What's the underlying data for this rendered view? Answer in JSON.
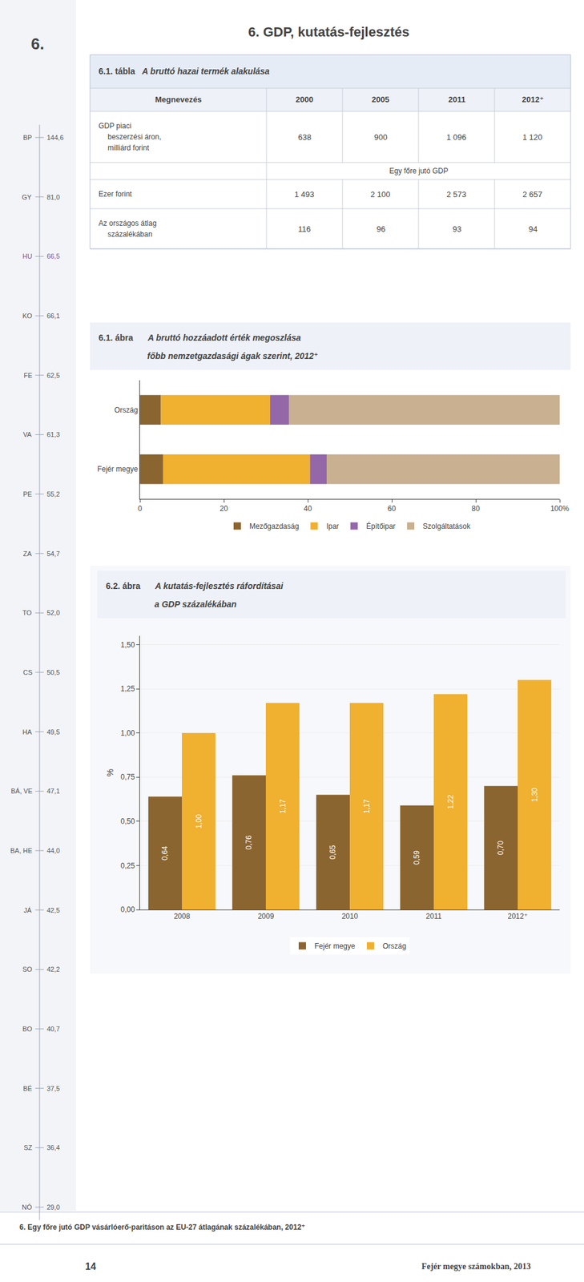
{
  "title": "6. GDP, kutatás-fejlesztés",
  "annotations": [
    "6.",
    "6. Egy főre jutó GDP vásárlóerő-paritáson az EU-27 átlagának százalékában, 2012⁺",
    "14",
    "Fejér megye számokban, 2013"
  ],
  "chart_data": [
    {
      "type": "table",
      "categories": [
        "BP",
        "GY",
        "HU",
        "KO",
        "FE",
        "VA",
        "PE",
        "ZA",
        "TO",
        "CS",
        "HA",
        "BÁ, VE",
        "BA, HE",
        "JÁ",
        "SO",
        "BO",
        "BÉ",
        "SZ",
        "NÓ"
      ],
      "values": [
        144.6,
        81.0,
        66.5,
        66.1,
        62.5,
        61.3,
        55.2,
        54.7,
        52.0,
        50.5,
        49.5,
        47.1,
        44.0,
        42.5,
        42.2,
        40.7,
        37.5,
        36.4,
        29.0
      ],
      "value_labels": [
        "144,6",
        "81,0",
        "66,5",
        "66,1",
        "62,5",
        "61,3",
        "55,2",
        "54,7",
        "52,0",
        "50,5",
        "49,5",
        "47,1",
        "44,0",
        "42,5",
        "42,2",
        "40,7",
        "37,5",
        "36,4",
        "29,0"
      ],
      "colors": [
        "#555555",
        "#555555",
        "#8050a8",
        "#555555",
        "#555555",
        "#555555",
        "#555555",
        "#555555",
        "#555555",
        "#555555",
        "#555555",
        "#555555",
        "#555555",
        "#555555",
        "#555555",
        "#555555",
        "#555555",
        "#555555",
        "#555555"
      ]
    },
    {
      "type": "table",
      "title": "6.1. tábla",
      "subtitle": "A bruttó hazai termék alakulása",
      "columns": [
        "Megnevezés",
        "2000",
        "2005",
        "2011",
        "2012⁺"
      ],
      "rows": [
        {
          "label": [
            "GDP piaci",
            "beszerzési áron,",
            "milliárd forint"
          ],
          "values": [
            638,
            900,
            1096,
            1120
          ],
          "value_labels": [
            "638",
            "900",
            "1 096",
            "1 120"
          ]
        },
        {
          "group": "Egy főre jutó GDP"
        },
        {
          "label": [
            "Ezer forint"
          ],
          "values": [
            1493,
            2100,
            2573,
            2657
          ],
          "value_labels": [
            "1 493",
            "2 100",
            "2 573",
            "2 657"
          ]
        },
        {
          "label": [
            "Az országos átlag",
            "százalékában"
          ],
          "values": [
            116,
            96,
            93,
            94
          ],
          "value_labels": [
            "116",
            "96",
            "93",
            "94"
          ]
        }
      ]
    },
    {
      "type": "bar",
      "orientation": "horizontal",
      "stacked": true,
      "title": "6.1. ábra",
      "subtitle": [
        "A bruttó hozzáadott érték megoszlása",
        "főbb nemzetgazdasági ágak szerint, 2012⁺"
      ],
      "categories": [
        "Fejér megye",
        "Ország"
      ],
      "series": [
        {
          "name": "Mezőgazdaság",
          "color": "#8B6530",
          "values": [
            5.5,
            5.0
          ]
        },
        {
          "name": "Ipar",
          "color": "#f0b030",
          "values": [
            35.0,
            26.0
          ]
        },
        {
          "name": "Építőipar",
          "color": "#9468a8",
          "values": [
            4.0,
            4.5
          ]
        },
        {
          "name": "Szolgáltatások",
          "color": "#c8b090",
          "values": [
            55.5,
            64.5
          ]
        }
      ],
      "xlim": [
        0,
        100
      ],
      "xticks": [
        0,
        20,
        40,
        60,
        80,
        {
          "value": 100,
          "label": "100%"
        }
      ],
      "grid": false,
      "legend": "bottom"
    },
    {
      "type": "bar",
      "title": "6.2. ábra",
      "subtitle": [
        "A kutatás-fejlesztés ráfordításai",
        "a GDP százalékában"
      ],
      "categories": [
        "2008",
        "2009",
        "2010",
        "2011",
        "2012⁺"
      ],
      "series": [
        {
          "name": "Fejér megye",
          "color": "#8B6530",
          "values": [
            0.64,
            0.76,
            0.65,
            0.59,
            0.7
          ],
          "value_labels": [
            "0,64",
            "0,76",
            "0,65",
            "0,59",
            "0,70"
          ]
        },
        {
          "name": "Ország",
          "color": "#f0b030",
          "values": [
            1.0,
            1.17,
            1.17,
            1.22,
            1.3
          ],
          "value_labels": [
            "1,00",
            "1,17",
            "1,17",
            "1,22",
            "1,30"
          ]
        }
      ],
      "ylim": [
        0,
        1.55
      ],
      "yticks": [
        {
          "value": 0,
          "label": "0,00"
        },
        {
          "value": 0.25,
          "label": "0,25"
        },
        {
          "value": 0.5,
          "label": "0,50"
        },
        {
          "value": 0.75,
          "label": "0,75"
        },
        {
          "value": 1,
          "label": "1,00"
        },
        {
          "value": 1.25,
          "label": "1,25"
        },
        {
          "value": 1.5,
          "label": "1,50"
        }
      ],
      "ylabel": "%",
      "grid": true,
      "data_labels": true,
      "legend": "bottom"
    }
  ]
}
